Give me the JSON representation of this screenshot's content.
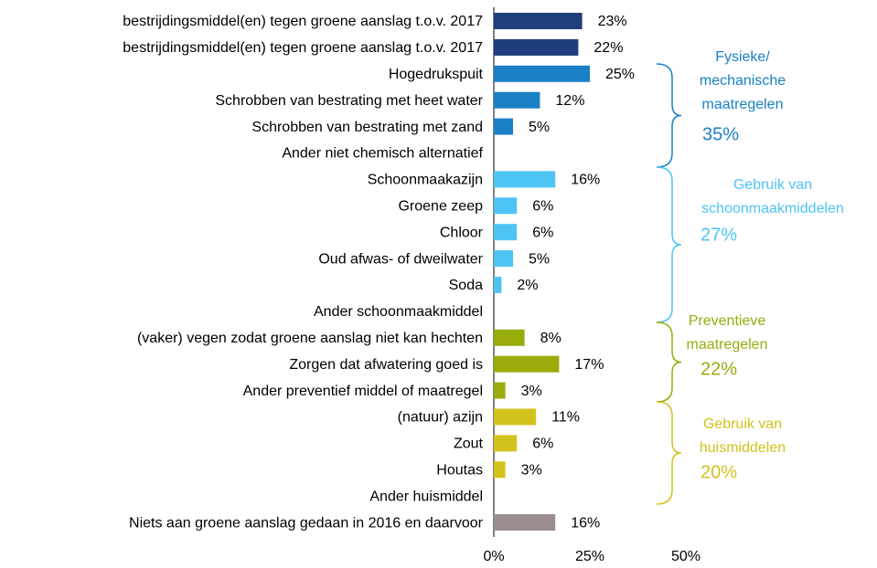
{
  "chart_data": {
    "type": "bar",
    "categories": [
      "bestrijdingsmiddel(en) tegen groene aanslag t.o.v. 2017",
      "bestrijdingsmiddel(en) tegen groene aanslag t.o.v. 2017",
      "Hogedrukspuit",
      "Schrobben van bestrating met heet water",
      "Schrobben van bestrating met zand",
      "Ander niet chemisch alternatief",
      "Schoonmaakazijn",
      "Groene zeep",
      "Chloor",
      "Oud afwas- of dweilwater",
      "Soda",
      "Ander schoonmaakmiddel",
      "(vaker) vegen zodat groene aanslag niet kan hechten",
      "Zorgen dat afwatering goed is",
      "Ander preventief middel of maatregel",
      "(natuur) azijn",
      "Zout",
      "Houtas",
      "Ander huismiddel",
      "Niets aan groene aanslag gedaan in 2016 en daarvoor"
    ],
    "values": [
      23,
      22,
      25,
      12,
      5,
      null,
      16,
      6,
      6,
      5,
      2,
      null,
      8,
      17,
      3,
      11,
      6,
      3,
      null,
      16
    ],
    "value_labels": [
      "23%",
      "22%",
      "25%",
      "12%",
      "5%",
      null,
      "16%",
      "6%",
      "6%",
      "5%",
      "2%",
      null,
      "8%",
      "17%",
      "3%",
      "11%",
      "6%",
      "3%",
      null,
      "16%"
    ],
    "colors": [
      "#1f3f7c",
      "#1f3f7c",
      "#1a80c6",
      "#1a80c6",
      "#1a80c6",
      "#1a80c6",
      "#4ec4f4",
      "#4ec4f4",
      "#4ec4f4",
      "#4ec4f4",
      "#4ec4f4",
      "#4ec4f4",
      "#9aab0c",
      "#9aab0c",
      "#9aab0c",
      "#d2c21c",
      "#d2c21c",
      "#d2c21c",
      "#d2c21c",
      "#9b8d8d"
    ],
    "xlim": [
      0,
      50
    ],
    "xticks": [
      {
        "value": 0,
        "label": "0%"
      },
      {
        "value": 25,
        "label": "25%"
      },
      {
        "value": 50,
        "label": "50%"
      }
    ],
    "annotations": [
      {
        "lines": [
          "Fysieke/",
          "mechanische",
          "maatregelen"
        ],
        "total": "35%",
        "color": "#1a80c6"
      },
      {
        "lines": [
          "Gebruik van",
          "schoonmaakmiddelen"
        ],
        "total": "27%",
        "color": "#4ec4f4"
      },
      {
        "lines": [
          "Preventieve",
          "maatregelen"
        ],
        "total": "22%",
        "color": "#9aab0c"
      },
      {
        "lines": [
          "Gebruik van",
          "huismiddelen"
        ],
        "total": "20%",
        "color": "#d2c21c"
      }
    ]
  }
}
